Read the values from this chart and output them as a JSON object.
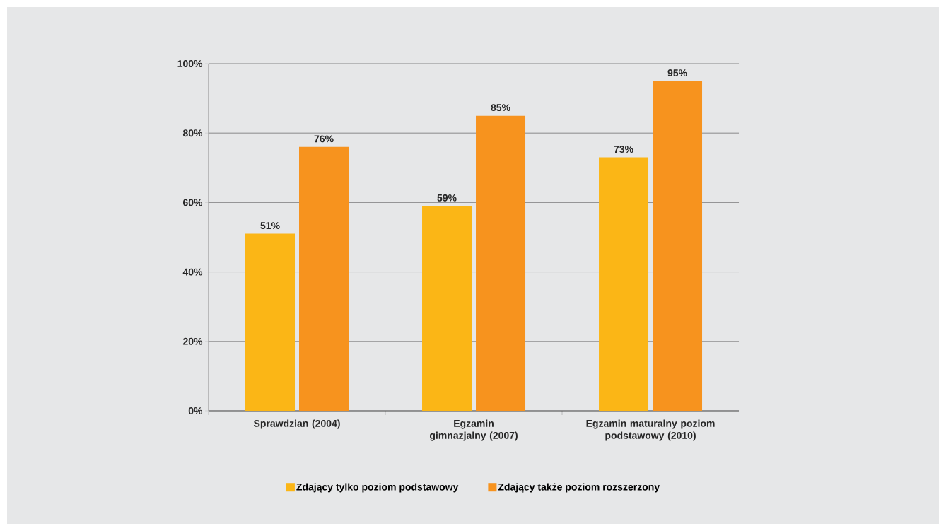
{
  "chart_data": {
    "type": "bar",
    "categories": [
      "Sprawdzian  (2004)",
      "Egzamin gimnazjalny (2007)",
      "Egzamin maturalny poziom podstawowy (2010)"
    ],
    "series": [
      {
        "name": "Zdający tylko poziom podstawowy",
        "color": "#fbb616",
        "values": [
          51,
          59,
          73
        ],
        "value_labels": [
          "51%",
          "59%",
          "73%"
        ]
      },
      {
        "name": "Zdający także poziom rozszerzony",
        "color": "#f7931e",
        "values": [
          76,
          85,
          95
        ],
        "value_labels": [
          "76%",
          "85%",
          "95%"
        ]
      }
    ],
    "ylim": [
      0,
      100
    ],
    "yticks": [
      {
        "value": 0,
        "label": "0%"
      },
      {
        "value": 20,
        "label": "20%"
      },
      {
        "value": 40,
        "label": "40%"
      },
      {
        "value": 60,
        "label": "60%"
      },
      {
        "value": 80,
        "label": "80%"
      },
      {
        "value": 100,
        "label": "100%"
      }
    ],
    "grid": "y",
    "legend": "bottom"
  }
}
